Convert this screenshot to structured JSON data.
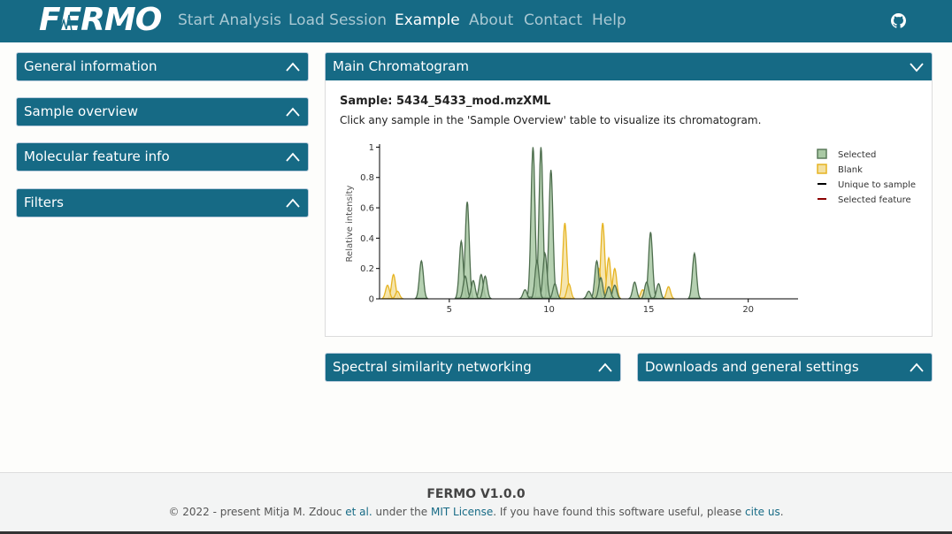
{
  "navbar": {
    "logo": "FERMO",
    "items": [
      {
        "label": "Start Analysis",
        "active": false
      },
      {
        "label": "Load Session",
        "active": false
      },
      {
        "label": "Example",
        "active": true
      },
      {
        "label": "About",
        "active": false
      },
      {
        "label": "Contact",
        "active": false
      },
      {
        "label": "Help",
        "active": false
      }
    ],
    "github_icon": "github-icon"
  },
  "sidebar": {
    "panels": [
      {
        "label": "General information",
        "state": "collapsed"
      },
      {
        "label": "Sample overview",
        "state": "collapsed"
      },
      {
        "label": "Molecular feature info",
        "state": "collapsed"
      },
      {
        "label": "Filters",
        "state": "collapsed"
      }
    ]
  },
  "main": {
    "title": "Main Chromatogram",
    "sample_label": "Sample: 5434_5433_mod.mzXML",
    "help_text": "Click any sample in the 'Sample Overview' table to visualize its chromatogram."
  },
  "bottom_panels": {
    "network": "Spectral similarity networking",
    "downloads": "Downloads and general settings"
  },
  "chart_data": {
    "type": "area",
    "title": "",
    "xlabel": "",
    "ylabel": "Relative intensity",
    "xlim": [
      1.5,
      22.5
    ],
    "ylim": [
      0,
      1.02
    ],
    "xticks": [
      "5",
      "10",
      "15",
      "20"
    ],
    "yticks": [
      "0",
      "0.2",
      "0.4",
      "0.6",
      "0.8",
      "1"
    ],
    "legend_position": "right",
    "legend": [
      {
        "name": "Selected",
        "marker": "square",
        "color": "#5a7a5a",
        "fill": "#a9c9a4"
      },
      {
        "name": "Blank",
        "marker": "square",
        "color": "#e6b422",
        "fill": "#f3e0a0"
      },
      {
        "name": "Unique to sample",
        "marker": "line",
        "color": "#000000"
      },
      {
        "name": "Selected feature",
        "marker": "line",
        "color": "#8b0000"
      }
    ],
    "series": [
      {
        "name": "Selected",
        "peaks": [
          {
            "x": 3.6,
            "h": 0.25
          },
          {
            "x": 5.6,
            "h": 0.38
          },
          {
            "x": 5.9,
            "h": 0.64
          },
          {
            "x": 5.8,
            "h": 0.15
          },
          {
            "x": 6.2,
            "h": 0.12
          },
          {
            "x": 6.6,
            "h": 0.16
          },
          {
            "x": 6.8,
            "h": 0.15
          },
          {
            "x": 8.8,
            "h": 0.06
          },
          {
            "x": 9.2,
            "h": 1.0
          },
          {
            "x": 9.6,
            "h": 1.0
          },
          {
            "x": 9.4,
            "h": 0.25
          },
          {
            "x": 9.8,
            "h": 0.3
          },
          {
            "x": 10.1,
            "h": 0.85
          },
          {
            "x": 10.3,
            "h": 0.1
          },
          {
            "x": 12.0,
            "h": 0.05
          },
          {
            "x": 12.4,
            "h": 0.25
          },
          {
            "x": 12.6,
            "h": 0.14
          },
          {
            "x": 13.0,
            "h": 0.08
          },
          {
            "x": 13.3,
            "h": 0.09
          },
          {
            "x": 14.3,
            "h": 0.11
          },
          {
            "x": 14.9,
            "h": 0.11
          },
          {
            "x": 15.1,
            "h": 0.44
          },
          {
            "x": 15.5,
            "h": 0.1
          },
          {
            "x": 17.3,
            "h": 0.3
          }
        ]
      },
      {
        "name": "Blank",
        "peaks": [
          {
            "x": 1.9,
            "h": 0.09
          },
          {
            "x": 2.2,
            "h": 0.16
          },
          {
            "x": 2.4,
            "h": 0.05
          },
          {
            "x": 10.8,
            "h": 0.5
          },
          {
            "x": 11.0,
            "h": 0.1
          },
          {
            "x": 12.7,
            "h": 0.5
          },
          {
            "x": 12.5,
            "h": 0.2
          },
          {
            "x": 13.0,
            "h": 0.27
          },
          {
            "x": 13.3,
            "h": 0.2
          },
          {
            "x": 14.7,
            "h": 0.06
          },
          {
            "x": 16.0,
            "h": 0.08
          }
        ]
      }
    ]
  },
  "footer": {
    "title": "FERMO V1.0.0",
    "part1": "© 2022 - present Mitja M. Zdouc ",
    "link_etal": "et al.",
    "part2": " under the ",
    "link_license": "MIT License",
    "part3": ". If you have found this software useful, please ",
    "link_cite": "cite us",
    "part4": "."
  }
}
